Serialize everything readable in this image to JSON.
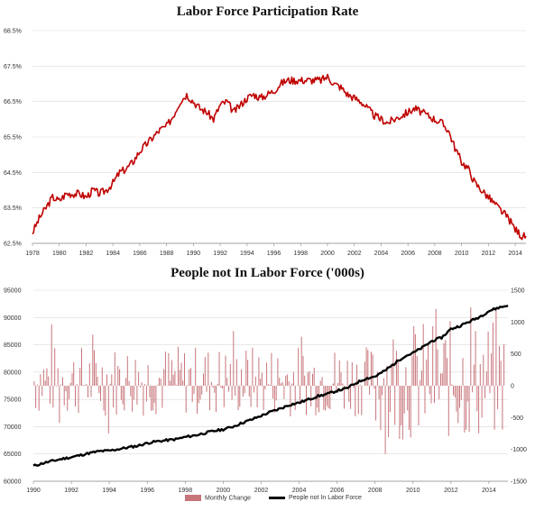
{
  "chart_data": [
    {
      "type": "line",
      "title": "Labor Force Participation Rate",
      "xlabel": "",
      "ylabel": "",
      "xlim": [
        1978,
        2014.8
      ],
      "ylim": [
        62.5,
        68.5
      ],
      "x_ticks": [
        "1978",
        "1980",
        "1982",
        "1984",
        "1986",
        "1988",
        "1990",
        "1992",
        "1994",
        "1996",
        "1998",
        "2000",
        "2002",
        "2004",
        "2006",
        "2008",
        "2010",
        "2012",
        "2014"
      ],
      "y_ticks": [
        "62.5%",
        "63.5%",
        "64.5%",
        "65.5%",
        "66.5%",
        "67.5%",
        "68.5%"
      ],
      "grid": "horizontal",
      "line_color": "#c00000",
      "series": [
        {
          "x": [
            1978.0,
            1978.5,
            1979.0,
            1979.5,
            1980.0,
            1980.5,
            1981.0,
            1981.5,
            1982.0,
            1982.5,
            1983.0,
            1983.5,
            1984.0,
            1984.5,
            1985.0,
            1985.5,
            1986.0,
            1986.5,
            1987.0,
            1987.5,
            1988.0,
            1988.5,
            1989.0,
            1989.5,
            1990.0,
            1990.5,
            1991.0,
            1991.5,
            1992.0,
            1992.5,
            1993.0,
            1993.5,
            1994.0,
            1994.5,
            1995.0,
            1995.5,
            1996.0,
            1996.5,
            1997.0,
            1997.5,
            1998.0,
            1998.5,
            1999.0,
            1999.5,
            2000.0,
            2000.5,
            2001.0,
            2001.5,
            2002.0,
            2002.5,
            2003.0,
            2003.5,
            2004.0,
            2004.5,
            2005.0,
            2005.5,
            2006.0,
            2006.5,
            2007.0,
            2007.5,
            2008.0,
            2008.5,
            2009.0,
            2009.5,
            2010.0,
            2010.5,
            2011.0,
            2011.5,
            2012.0,
            2012.5,
            2013.0,
            2013.5,
            2014.0,
            2014.5,
            2014.8
          ],
          "values": [
            62.8,
            63.2,
            63.5,
            63.8,
            63.7,
            63.9,
            63.9,
            63.9,
            63.8,
            64.0,
            63.9,
            64.0,
            64.2,
            64.5,
            64.6,
            64.8,
            65.1,
            65.3,
            65.5,
            65.7,
            65.8,
            66.1,
            66.5,
            66.7,
            66.5,
            66.3,
            66.2,
            66.0,
            66.4,
            66.5,
            66.2,
            66.4,
            66.6,
            66.7,
            66.6,
            66.7,
            66.8,
            67.0,
            67.1,
            67.1,
            67.1,
            67.1,
            67.1,
            67.1,
            67.2,
            67.0,
            66.9,
            66.7,
            66.6,
            66.5,
            66.3,
            66.1,
            66.0,
            65.9,
            66.0,
            66.1,
            66.2,
            66.3,
            66.2,
            66.1,
            66.0,
            65.9,
            65.7,
            65.2,
            64.8,
            64.6,
            64.2,
            64.0,
            63.8,
            63.6,
            63.4,
            63.2,
            62.9,
            62.7,
            62.7
          ]
        }
      ]
    },
    {
      "type": "bar+line",
      "title": "People not In Labor Force ('000s)",
      "xlabel": "",
      "ylabel": "",
      "xlim": [
        1990,
        2015
      ],
      "ylim_left": [
        60000,
        95000
      ],
      "ylim_right": [
        -1500,
        1500
      ],
      "x_ticks": [
        "1990",
        "1992",
        "1994",
        "1996",
        "1998",
        "2000",
        "2002",
        "2004",
        "2006",
        "2008",
        "2010",
        "2012",
        "2014"
      ],
      "y_ticks_left": [
        "60000",
        "65000",
        "70000",
        "75000",
        "80000",
        "85000",
        "90000",
        "95000"
      ],
      "y_ticks_right": [
        "-1500",
        "-1000",
        "-500",
        "0",
        "500",
        "1000",
        "1500"
      ],
      "grid": "horizontal",
      "legend_position": "bottom",
      "bar_color": "#c8757a",
      "line_color": "#000000",
      "bars_seed": 7,
      "series": [
        {
          "name": "Monthly Change",
          "axis": "right",
          "values": []
        },
        {
          "name": "People not In Labor Force",
          "axis": "left",
          "x": [
            1990.0,
            1990.5,
            1991.0,
            1991.5,
            1992.0,
            1992.5,
            1993.0,
            1993.5,
            1994.0,
            1994.5,
            1995.0,
            1995.5,
            1996.0,
            1996.5,
            1997.0,
            1997.5,
            1998.0,
            1998.5,
            1999.0,
            1999.5,
            2000.0,
            2000.5,
            2001.0,
            2001.5,
            2002.0,
            2002.5,
            2003.0,
            2003.5,
            2004.0,
            2004.5,
            2005.0,
            2005.5,
            2006.0,
            2006.5,
            2007.0,
            2007.5,
            2008.0,
            2008.5,
            2009.0,
            2009.5,
            2010.0,
            2010.5,
            2011.0,
            2011.5,
            2012.0,
            2012.5,
            2013.0,
            2013.5,
            2014.0,
            2014.5,
            2015.0
          ],
          "values": [
            62800,
            63300,
            63700,
            64100,
            64400,
            64800,
            65200,
            65500,
            65600,
            65900,
            66200,
            66500,
            67000,
            67300,
            67500,
            67700,
            68100,
            68400,
            68800,
            69200,
            69500,
            70000,
            70700,
            71300,
            72000,
            72700,
            73300,
            74000,
            74400,
            75000,
            75600,
            76000,
            76600,
            77000,
            78000,
            78800,
            79200,
            80200,
            81500,
            82800,
            83500,
            84500,
            85700,
            86300,
            87900,
            88500,
            89300,
            90100,
            91200,
            91800,
            92200
          ]
        }
      ]
    }
  ],
  "legend": {
    "monthly_change": "Monthly Change",
    "people_not_in_lf": "People not In Labor Force"
  }
}
